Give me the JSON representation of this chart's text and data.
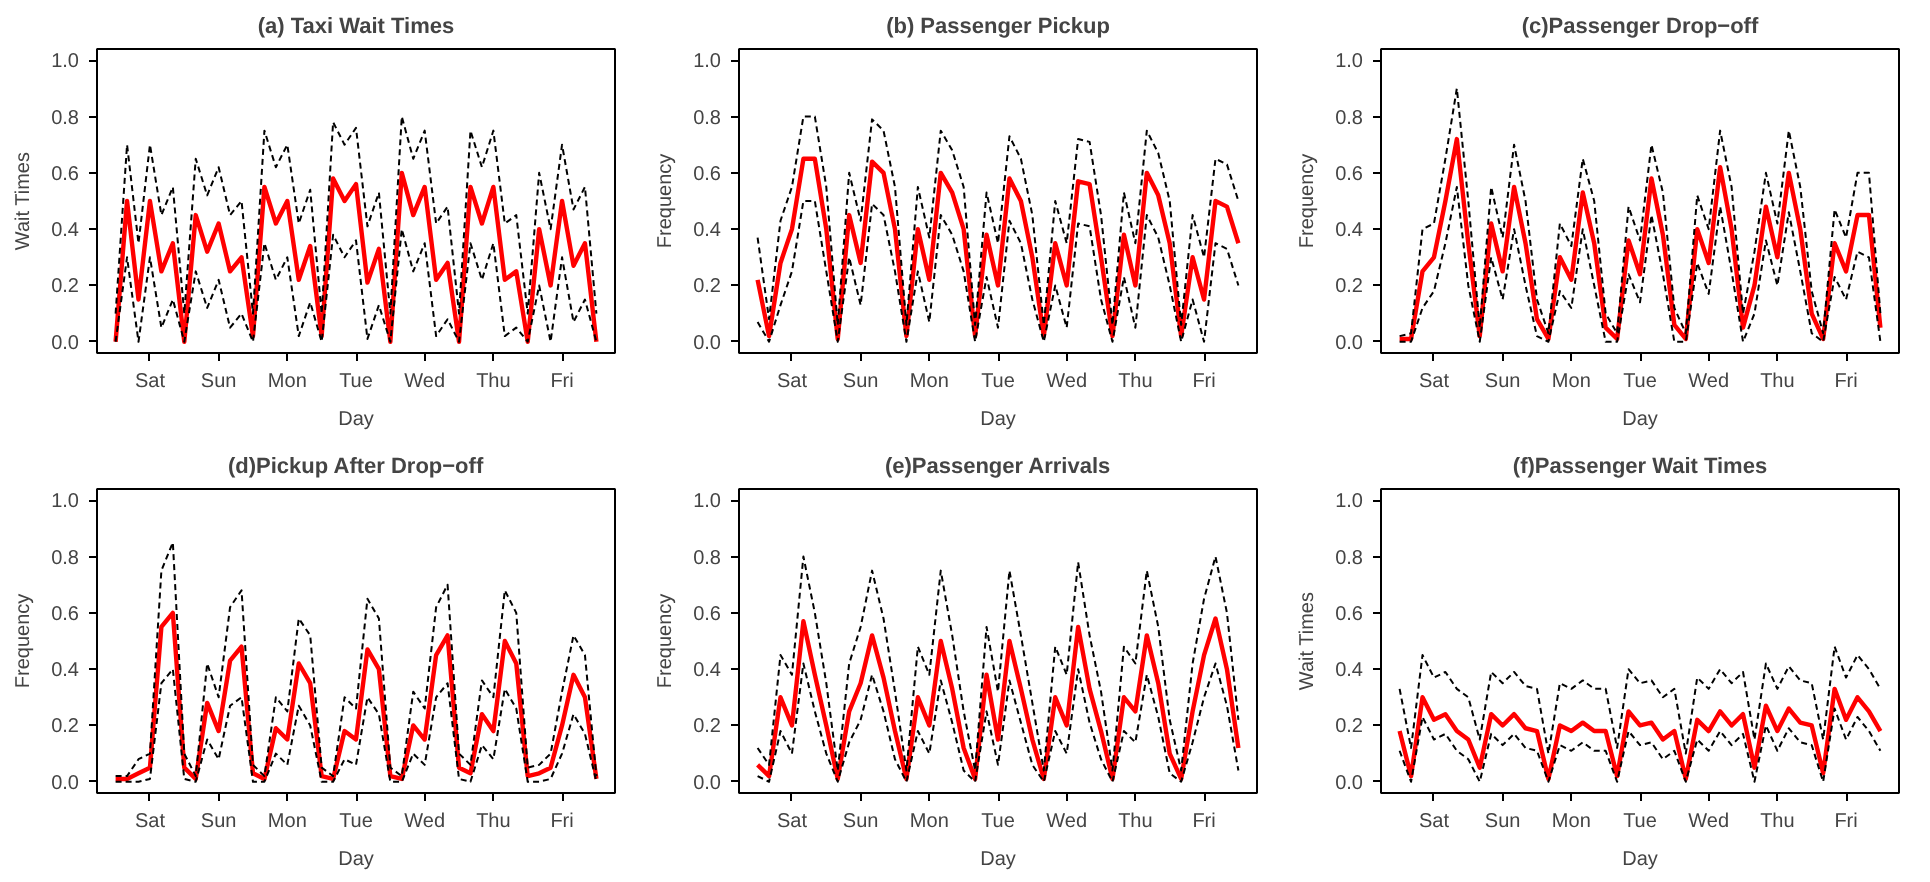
{
  "chart_data": [
    {
      "type": "line",
      "title": "(a) Taxi Wait Times",
      "xlabel": "Day",
      "ylabel": "Wait Times",
      "categories": [
        null,
        null,
        null,
        "Sat",
        null,
        null,
        null,
        null,
        null,
        "Sun",
        null,
        null,
        null,
        null,
        null,
        "Mon",
        null,
        null,
        null,
        null,
        null,
        "Tue",
        null,
        null,
        null,
        null,
        null,
        "Wed",
        null,
        null,
        null,
        null,
        null,
        "Thu",
        null,
        null,
        null,
        null,
        null,
        "Fri",
        null,
        null,
        null
      ],
      "ylim": [
        -0.04,
        1.04
      ],
      "yticks": [
        {
          "value": 0,
          "label": "0.0"
        },
        {
          "value": 0.2,
          "label": "0.2"
        },
        {
          "value": 0.4,
          "label": "0.4"
        },
        {
          "value": 0.6,
          "label": "0.6"
        },
        {
          "value": 0.8,
          "label": "0.8"
        },
        {
          "value": 1,
          "label": "1.0"
        }
      ],
      "line_style": "solid",
      "series": [
        {
          "color": "#000000",
          "line_style": "dashed",
          "values": [
            0.1,
            0.7,
            0.35,
            0.7,
            0.45,
            0.55,
            0.1,
            0.65,
            0.52,
            0.62,
            0.45,
            0.5,
            0.1,
            0.75,
            0.62,
            0.7,
            0.42,
            0.54,
            0.1,
            0.78,
            0.7,
            0.76,
            0.41,
            0.53,
            0.1,
            0.8,
            0.65,
            0.75,
            0.42,
            0.48,
            0.1,
            0.75,
            0.62,
            0.75,
            0.42,
            0.45,
            0.1,
            0.6,
            0.4,
            0.7,
            0.47,
            0.55,
            0.1
          ]
        },
        {
          "color": "#000000",
          "line_style": "dashed",
          "values": [
            0,
            0.3,
            0,
            0.3,
            0.05,
            0.15,
            0,
            0.25,
            0.12,
            0.22,
            0.05,
            0.1,
            0,
            0.35,
            0.22,
            0.3,
            0.02,
            0.14,
            0,
            0.38,
            0.3,
            0.36,
            0.01,
            0.13,
            0,
            0.4,
            0.25,
            0.35,
            0.02,
            0.08,
            0,
            0.35,
            0.22,
            0.35,
            0.02,
            0.05,
            0,
            0.2,
            0,
            0.3,
            0.07,
            0.15,
            0
          ]
        },
        {
          "color": "#ff0000",
          "values": [
            0,
            0.5,
            0.15,
            0.5,
            0.25,
            0.35,
            0,
            0.45,
            0.32,
            0.42,
            0.25,
            0.3,
            0.02,
            0.55,
            0.42,
            0.5,
            0.22,
            0.34,
            0.02,
            0.58,
            0.5,
            0.56,
            0.21,
            0.33,
            0,
            0.6,
            0.45,
            0.55,
            0.22,
            0.28,
            0,
            0.55,
            0.42,
            0.55,
            0.22,
            0.25,
            0,
            0.4,
            0.2,
            0.5,
            0.27,
            0.35,
            0
          ]
        }
      ]
    },
    {
      "type": "line",
      "title": "(b) Passenger Pickup",
      "xlabel": "Day",
      "ylabel": "Frequency",
      "categories": [
        null,
        null,
        null,
        "Sat",
        null,
        null,
        null,
        null,
        null,
        "Sun",
        null,
        null,
        null,
        null,
        null,
        "Mon",
        null,
        null,
        null,
        null,
        null,
        "Tue",
        null,
        null,
        null,
        null,
        null,
        "Wed",
        null,
        null,
        null,
        null,
        null,
        "Thu",
        null,
        null,
        null,
        null,
        null,
        "Fri",
        null,
        null,
        null
      ],
      "ylim": [
        -0.04,
        1.04
      ],
      "yticks": [
        {
          "value": 0,
          "label": "0.0"
        },
        {
          "value": 0.2,
          "label": "0.2"
        },
        {
          "value": 0.4,
          "label": "0.4"
        },
        {
          "value": 0.6,
          "label": "0.6"
        },
        {
          "value": 0.8,
          "label": "0.8"
        },
        {
          "value": 1,
          "label": "1.0"
        }
      ],
      "line_style": "solid",
      "series": [
        {
          "color": "#000000",
          "line_style": "dashed",
          "values": [
            0.37,
            0.08,
            0.43,
            0.55,
            0.8,
            0.8,
            0.55,
            0.06,
            0.6,
            0.43,
            0.79,
            0.75,
            0.55,
            0.06,
            0.55,
            0.37,
            0.75,
            0.68,
            0.55,
            0.06,
            0.53,
            0.35,
            0.73,
            0.65,
            0.45,
            0.06,
            0.5,
            0.35,
            0.72,
            0.71,
            0.45,
            0.06,
            0.53,
            0.35,
            0.75,
            0.67,
            0.5,
            0.06,
            0.45,
            0.3,
            0.65,
            0.63,
            0.5
          ]
        },
        {
          "color": "#000000",
          "line_style": "dashed",
          "values": [
            0.07,
            0,
            0.13,
            0.25,
            0.5,
            0.5,
            0.25,
            0,
            0.3,
            0.13,
            0.49,
            0.45,
            0.25,
            0,
            0.25,
            0.07,
            0.45,
            0.38,
            0.25,
            0,
            0.23,
            0.05,
            0.43,
            0.35,
            0.15,
            0,
            0.2,
            0.05,
            0.42,
            0.41,
            0.15,
            0,
            0.23,
            0.05,
            0.45,
            0.37,
            0.2,
            0,
            0.15,
            0,
            0.35,
            0.33,
            0.2
          ]
        },
        {
          "color": "#ff0000",
          "values": [
            0.22,
            0.02,
            0.28,
            0.4,
            0.65,
            0.65,
            0.4,
            0.01,
            0.45,
            0.28,
            0.64,
            0.6,
            0.4,
            0.02,
            0.4,
            0.22,
            0.6,
            0.53,
            0.4,
            0.02,
            0.38,
            0.2,
            0.58,
            0.5,
            0.3,
            0.02,
            0.35,
            0.2,
            0.57,
            0.56,
            0.3,
            0.02,
            0.38,
            0.2,
            0.6,
            0.52,
            0.35,
            0.02,
            0.3,
            0.15,
            0.5,
            0.48,
            0.35
          ]
        }
      ]
    },
    {
      "type": "line",
      "title": "(c)Passenger Drop−off",
      "xlabel": "Day",
      "ylabel": "Frequency",
      "categories": [
        null,
        null,
        null,
        "Sat",
        null,
        null,
        null,
        null,
        null,
        "Sun",
        null,
        null,
        null,
        null,
        null,
        "Mon",
        null,
        null,
        null,
        null,
        null,
        "Tue",
        null,
        null,
        null,
        null,
        null,
        "Wed",
        null,
        null,
        null,
        null,
        null,
        "Thu",
        null,
        null,
        null,
        null,
        null,
        "Fri",
        null,
        null,
        null
      ],
      "ylim": [
        -0.04,
        1.04
      ],
      "yticks": [
        {
          "value": 0,
          "label": "0.0"
        },
        {
          "value": 0.2,
          "label": "0.2"
        },
        {
          "value": 0.4,
          "label": "0.4"
        },
        {
          "value": 0.6,
          "label": "0.6"
        },
        {
          "value": 0.8,
          "label": "0.8"
        },
        {
          "value": 1,
          "label": "1.0"
        }
      ],
      "line_style": "solid",
      "series": [
        {
          "color": "#000000",
          "line_style": "dashed",
          "values": [
            0.02,
            0.03,
            0.4,
            0.42,
            0.65,
            0.9,
            0.5,
            0.05,
            0.55,
            0.37,
            0.7,
            0.5,
            0.15,
            0.03,
            0.42,
            0.34,
            0.65,
            0.5,
            0.1,
            0.03,
            0.48,
            0.36,
            0.7,
            0.53,
            0.12,
            0.03,
            0.52,
            0.4,
            0.75,
            0.55,
            0.1,
            0.32,
            0.6,
            0.42,
            0.75,
            0.55,
            0.18,
            0.03,
            0.47,
            0.37,
            0.6,
            0.6,
            0.1
          ]
        },
        {
          "color": "#000000",
          "line_style": "dashed",
          "values": [
            0,
            0,
            0.12,
            0.18,
            0.35,
            0.55,
            0.2,
            0,
            0.3,
            0.15,
            0.4,
            0.2,
            0.02,
            0,
            0.18,
            0.12,
            0.4,
            0.2,
            0,
            0,
            0.24,
            0.14,
            0.45,
            0.24,
            0,
            0,
            0.28,
            0.17,
            0.48,
            0.25,
            0,
            0.1,
            0.36,
            0.2,
            0.46,
            0.25,
            0.03,
            0,
            0.23,
            0.15,
            0.32,
            0.3,
            0
          ]
        },
        {
          "color": "#ff0000",
          "values": [
            0.01,
            0.01,
            0.25,
            0.3,
            0.5,
            0.72,
            0.35,
            0.02,
            0.42,
            0.25,
            0.55,
            0.35,
            0.08,
            0.01,
            0.3,
            0.22,
            0.53,
            0.35,
            0.05,
            0.01,
            0.36,
            0.24,
            0.58,
            0.38,
            0.06,
            0.01,
            0.4,
            0.28,
            0.62,
            0.4,
            0.05,
            0.2,
            0.48,
            0.3,
            0.6,
            0.4,
            0.1,
            0.01,
            0.35,
            0.25,
            0.45,
            0.45,
            0.05
          ]
        }
      ]
    },
    {
      "type": "line",
      "title": "(d)Pickup After Drop−off",
      "xlabel": "Day",
      "ylabel": "Frequency",
      "categories": [
        null,
        null,
        null,
        "Sat",
        null,
        null,
        null,
        null,
        null,
        "Sun",
        null,
        null,
        null,
        null,
        null,
        "Mon",
        null,
        null,
        null,
        null,
        null,
        "Tue",
        null,
        null,
        null,
        null,
        null,
        "Wed",
        null,
        null,
        null,
        null,
        null,
        "Thu",
        null,
        null,
        null,
        null,
        null,
        "Fri",
        null,
        null,
        null
      ],
      "ylim": [
        -0.04,
        1.04
      ],
      "yticks": [
        {
          "value": 0,
          "label": "0.0"
        },
        {
          "value": 0.2,
          "label": "0.2"
        },
        {
          "value": 0.4,
          "label": "0.4"
        },
        {
          "value": 0.6,
          "label": "0.6"
        },
        {
          "value": 0.8,
          "label": "0.8"
        },
        {
          "value": 1,
          "label": "1.0"
        }
      ],
      "line_style": "solid",
      "series": [
        {
          "color": "#000000",
          "line_style": "dashed",
          "values": [
            0.02,
            0.02,
            0.08,
            0.1,
            0.75,
            0.85,
            0.1,
            0.02,
            0.42,
            0.3,
            0.62,
            0.68,
            0.06,
            0.02,
            0.3,
            0.25,
            0.58,
            0.52,
            0.05,
            0.02,
            0.3,
            0.26,
            0.65,
            0.58,
            0.05,
            0.02,
            0.32,
            0.26,
            0.62,
            0.7,
            0.1,
            0.06,
            0.36,
            0.3,
            0.68,
            0.6,
            0.05,
            0.06,
            0.1,
            0.32,
            0.52,
            0.45,
            0.02
          ]
        },
        {
          "color": "#000000",
          "line_style": "dashed",
          "values": [
            0,
            0,
            0,
            0.01,
            0.35,
            0.4,
            0.01,
            0,
            0.15,
            0.08,
            0.27,
            0.3,
            0,
            0,
            0.1,
            0.06,
            0.27,
            0.2,
            0,
            0,
            0.08,
            0.06,
            0.3,
            0.24,
            0,
            0,
            0.1,
            0.06,
            0.3,
            0.35,
            0.01,
            0,
            0.13,
            0.08,
            0.33,
            0.26,
            0,
            0,
            0.01,
            0.1,
            0.24,
            0.17,
            0
          ]
        },
        {
          "color": "#ff0000",
          "values": [
            0.01,
            0.01,
            0.03,
            0.05,
            0.55,
            0.6,
            0.05,
            0.01,
            0.28,
            0.18,
            0.43,
            0.48,
            0.03,
            0.01,
            0.19,
            0.15,
            0.42,
            0.35,
            0.02,
            0.01,
            0.18,
            0.15,
            0.47,
            0.4,
            0.02,
            0.01,
            0.2,
            0.15,
            0.45,
            0.52,
            0.05,
            0.03,
            0.24,
            0.18,
            0.5,
            0.42,
            0.02,
            0.03,
            0.05,
            0.2,
            0.38,
            0.3,
            0.01
          ]
        }
      ]
    },
    {
      "type": "line",
      "title": "(e)Passenger Arrivals",
      "xlabel": "Day",
      "ylabel": "Frequency",
      "categories": [
        null,
        null,
        null,
        "Sat",
        null,
        null,
        null,
        null,
        null,
        "Sun",
        null,
        null,
        null,
        null,
        null,
        "Mon",
        null,
        null,
        null,
        null,
        null,
        "Tue",
        null,
        null,
        null,
        null,
        null,
        "Wed",
        null,
        null,
        null,
        null,
        null,
        "Thu",
        null,
        null,
        null,
        null,
        null,
        "Fri",
        null,
        null,
        null
      ],
      "ylim": [
        -0.04,
        1.04
      ],
      "yticks": [
        {
          "value": 0,
          "label": "0.0"
        },
        {
          "value": 0.2,
          "label": "0.2"
        },
        {
          "value": 0.4,
          "label": "0.4"
        },
        {
          "value": 0.6,
          "label": "0.6"
        },
        {
          "value": 0.8,
          "label": "0.8"
        },
        {
          "value": 1,
          "label": "1.0"
        }
      ],
      "line_style": "solid",
      "series": [
        {
          "color": "#000000",
          "line_style": "dashed",
          "values": [
            0.12,
            0.06,
            0.45,
            0.38,
            0.8,
            0.6,
            0.35,
            0.04,
            0.42,
            0.55,
            0.75,
            0.58,
            0.32,
            0.04,
            0.48,
            0.38,
            0.75,
            0.52,
            0.25,
            0.04,
            0.55,
            0.32,
            0.75,
            0.52,
            0.28,
            0.04,
            0.48,
            0.38,
            0.78,
            0.52,
            0.32,
            0.04,
            0.48,
            0.42,
            0.75,
            0.55,
            0.22,
            0.04,
            0.42,
            0.65,
            0.8,
            0.6,
            0.22
          ]
        },
        {
          "color": "#000000",
          "line_style": "dashed",
          "values": [
            0.02,
            0,
            0.18,
            0.1,
            0.42,
            0.25,
            0.1,
            0,
            0.14,
            0.22,
            0.38,
            0.25,
            0.08,
            0,
            0.18,
            0.1,
            0.36,
            0.21,
            0.04,
            0,
            0.25,
            0.06,
            0.36,
            0.21,
            0.06,
            0,
            0.18,
            0.1,
            0.4,
            0.21,
            0.08,
            0,
            0.18,
            0.14,
            0.38,
            0.23,
            0.03,
            0,
            0.14,
            0.3,
            0.42,
            0.27,
            0.04
          ]
        },
        {
          "color": "#ff0000",
          "values": [
            0.06,
            0.02,
            0.3,
            0.2,
            0.57,
            0.38,
            0.2,
            0.01,
            0.25,
            0.35,
            0.52,
            0.37,
            0.18,
            0.01,
            0.3,
            0.2,
            0.5,
            0.33,
            0.12,
            0.01,
            0.38,
            0.15,
            0.5,
            0.33,
            0.15,
            0.01,
            0.3,
            0.2,
            0.55,
            0.33,
            0.18,
            0.01,
            0.3,
            0.25,
            0.52,
            0.35,
            0.1,
            0.01,
            0.25,
            0.45,
            0.58,
            0.4,
            0.12
          ]
        }
      ]
    },
    {
      "type": "line",
      "title": "(f)Passenger Wait Times",
      "xlabel": "Day",
      "ylabel": "Wait Times",
      "categories": [
        null,
        null,
        null,
        "Sat",
        null,
        null,
        null,
        null,
        null,
        "Sun",
        null,
        null,
        null,
        null,
        null,
        "Mon",
        null,
        null,
        null,
        null,
        null,
        "Tue",
        null,
        null,
        null,
        null,
        null,
        "Wed",
        null,
        null,
        null,
        null,
        null,
        "Thu",
        null,
        null,
        null,
        null,
        null,
        "Fri",
        null,
        null,
        null
      ],
      "ylim": [
        -0.04,
        1.04
      ],
      "yticks": [
        {
          "value": 0,
          "label": "0.0"
        },
        {
          "value": 0.2,
          "label": "0.2"
        },
        {
          "value": 0.4,
          "label": "0.4"
        },
        {
          "value": 0.6,
          "label": "0.6"
        },
        {
          "value": 0.8,
          "label": "0.8"
        },
        {
          "value": 1,
          "label": "1.0"
        }
      ],
      "line_style": "solid",
      "series": [
        {
          "color": "#000000",
          "line_style": "dashed",
          "values": [
            0.33,
            0.12,
            0.45,
            0.37,
            0.39,
            0.33,
            0.3,
            0.15,
            0.39,
            0.35,
            0.39,
            0.34,
            0.33,
            0.1,
            0.35,
            0.33,
            0.36,
            0.33,
            0.33,
            0.12,
            0.4,
            0.35,
            0.36,
            0.3,
            0.33,
            0.1,
            0.37,
            0.33,
            0.4,
            0.35,
            0.39,
            0.15,
            0.42,
            0.33,
            0.41,
            0.36,
            0.35,
            0.15,
            0.48,
            0.37,
            0.45,
            0.4,
            0.33
          ]
        },
        {
          "color": "#000000",
          "line_style": "dashed",
          "values": [
            0.11,
            0,
            0.23,
            0.15,
            0.17,
            0.11,
            0.08,
            0,
            0.17,
            0.13,
            0.17,
            0.12,
            0.11,
            0,
            0.13,
            0.11,
            0.14,
            0.11,
            0.11,
            0,
            0.18,
            0.13,
            0.14,
            0.08,
            0.11,
            0,
            0.15,
            0.11,
            0.18,
            0.13,
            0.17,
            0,
            0.2,
            0.11,
            0.19,
            0.14,
            0.13,
            0,
            0.26,
            0.15,
            0.23,
            0.18,
            0.11
          ]
        },
        {
          "color": "#ff0000",
          "values": [
            0.18,
            0.02,
            0.3,
            0.22,
            0.24,
            0.18,
            0.15,
            0.05,
            0.24,
            0.2,
            0.24,
            0.19,
            0.18,
            0.01,
            0.2,
            0.18,
            0.21,
            0.18,
            0.18,
            0.02,
            0.25,
            0.2,
            0.21,
            0.15,
            0.18,
            0.01,
            0.22,
            0.18,
            0.25,
            0.2,
            0.24,
            0.05,
            0.27,
            0.18,
            0.26,
            0.21,
            0.2,
            0.03,
            0.33,
            0.22,
            0.3,
            0.25,
            0.18
          ]
        }
      ]
    }
  ]
}
